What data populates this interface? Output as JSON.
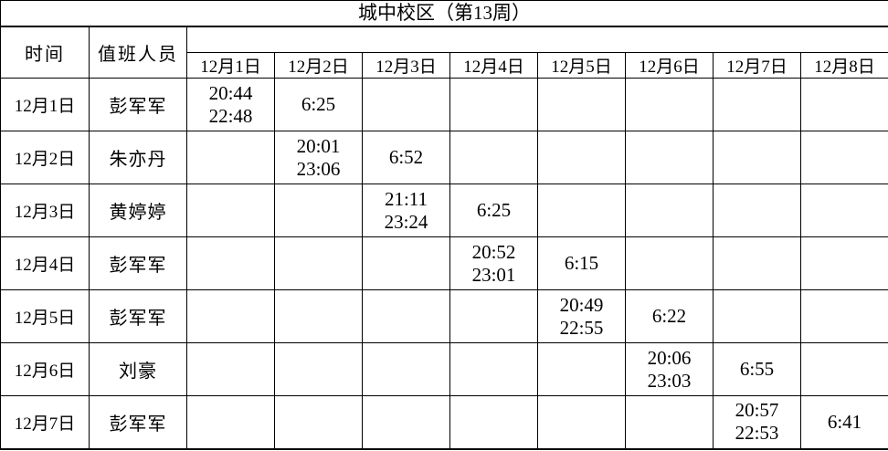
{
  "title": "城中校区（第13周）",
  "table": {
    "corner_headers": [
      "时间",
      "值班人员"
    ],
    "date_headers": [
      "12月1日",
      "12月2日",
      "12月3日",
      "12月4日",
      "12月5日",
      "12月6日",
      "12月7日",
      "12月8日"
    ],
    "rows": [
      {
        "date": "12月1日",
        "person": "彭军军",
        "cells": [
          "20:44\n22:48",
          "6:25",
          "",
          "",
          "",
          "",
          "",
          ""
        ]
      },
      {
        "date": "12月2日",
        "person": "朱亦丹",
        "cells": [
          "",
          "20:01\n23:06",
          "6:52",
          "",
          "",
          "",
          "",
          ""
        ]
      },
      {
        "date": "12月3日",
        "person": "黄婷婷",
        "cells": [
          "",
          "",
          "21:11\n23:24",
          "6:25",
          "",
          "",
          "",
          ""
        ]
      },
      {
        "date": "12月4日",
        "person": "彭军军",
        "cells": [
          "",
          "",
          "",
          "20:52\n23:01",
          "6:15",
          "",
          "",
          ""
        ]
      },
      {
        "date": "12月5日",
        "person": "彭军军",
        "cells": [
          "",
          "",
          "",
          "",
          "20:49\n22:55",
          "6:22",
          "",
          ""
        ]
      },
      {
        "date": "12月6日",
        "person": "刘豪",
        "cells": [
          "",
          "",
          "",
          "",
          "",
          "20:06\n23:03",
          "6:55",
          ""
        ]
      },
      {
        "date": "12月7日",
        "person": "彭军军",
        "cells": [
          "",
          "",
          "",
          "",
          "",
          "",
          "20:57\n22:53",
          "6:41"
        ]
      }
    ]
  },
  "colors": {
    "border": "#000000",
    "text": "#000000",
    "background": "#ffffff"
  }
}
